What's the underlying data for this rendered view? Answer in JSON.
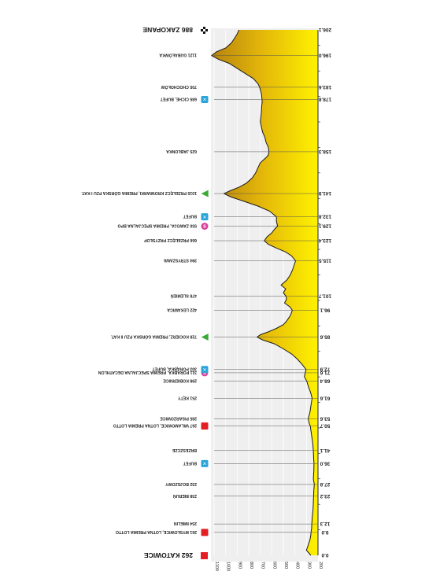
{
  "chart_data": {
    "type": "area",
    "orientation": "rotated-90",
    "distance_unit": "km",
    "altitude_unit": "m",
    "distance_range": [
      0,
      206.1
    ],
    "altitude_range": [
      200,
      1100
    ],
    "altitude_ticks": [
      1100,
      1000,
      900,
      800,
      700,
      600,
      500,
      400,
      300,
      200
    ],
    "start": {
      "altitude": 262,
      "name": "KATOWICE"
    },
    "finish": {
      "altitude": 886,
      "name": "ZAKOPANE"
    },
    "waypoints": [
      {
        "km": "0.0",
        "km_value": 0.0,
        "label": "",
        "altitude": 262,
        "marker": ""
      },
      {
        "km": "9.0",
        "km_value": 9.0,
        "label": "261 MYSŁOWICE, LOTNA PREMIA LOTTO",
        "altitude": 261,
        "marker": "red"
      },
      {
        "km": "12.3",
        "km_value": 12.3,
        "label": "254 IMIELIN",
        "altitude": 254,
        "marker": ""
      },
      {
        "km": "23.2",
        "km_value": 23.2,
        "label": "238 BIERUŃ",
        "altitude": 238,
        "marker": ""
      },
      {
        "km": "27.8",
        "km_value": 27.8,
        "label": "232 BOJSZOWY",
        "altitude": 232,
        "marker": ""
      },
      {
        "km": "36.0",
        "km_value": 36.0,
        "label": "BUFET",
        "altitude": 235,
        "marker": "feed"
      },
      {
        "km": "41.1",
        "km_value": 41.1,
        "label": "BRZESZCZE",
        "altitude": 240,
        "marker": ""
      },
      {
        "km": "50.7",
        "km_value": 50.7,
        "label": "267 WILAMOWICE, LOTNA PREMIA LOTTO",
        "altitude": 267,
        "marker": "red"
      },
      {
        "km": "53.6",
        "km_value": 53.6,
        "label": "285 PISARZOWICE",
        "altitude": 285,
        "marker": ""
      },
      {
        "km": "61.6",
        "km_value": 61.6,
        "label": "251 KĘTY",
        "altitude": 251,
        "marker": ""
      },
      {
        "km": "68.4",
        "km_value": 68.4,
        "label": "298 KOBIERNICE",
        "altitude": 298,
        "marker": ""
      },
      {
        "km": "71.6",
        "km_value": 71.6,
        "label": "311 PORĄBKA, PREMIA SPECJALNA DECATHLON",
        "altitude": 311,
        "marker": "special"
      },
      {
        "km": "72.9",
        "km_value": 72.9,
        "label": "303 PORĄBKA, BUFET",
        "altitude": 303,
        "marker": "feed"
      },
      {
        "km": "85.6",
        "km_value": 85.6,
        "label": "728 KOCIERZ, PREMIA GÓRSKA PZU II KAT.",
        "altitude": 728,
        "marker": "climb"
      },
      {
        "km": "96.1",
        "km_value": 96.1,
        "label": "422 LEKAWICA",
        "altitude": 422,
        "marker": ""
      },
      {
        "km": "101.7",
        "km_value": 101.7,
        "label": "478 SLEMIEŃ",
        "altitude": 478,
        "marker": ""
      },
      {
        "km": "115.5",
        "km_value": 115.5,
        "label": "394 STRYSZAWA",
        "altitude": 394,
        "marker": ""
      },
      {
        "km": "123.4",
        "km_value": 123.4,
        "label": "666 PRZEŁĘCZ PRZYSŁOP",
        "altitude": 666,
        "marker": ""
      },
      {
        "km": "129.1",
        "km_value": 129.1,
        "label": "550 ZAWOJA, PREMIA SPECJALNA BPO",
        "altitude": 550,
        "marker": "special"
      },
      {
        "km": "132.8",
        "km_value": 132.8,
        "label": "BUFET",
        "altitude": 560,
        "marker": "feed"
      },
      {
        "km": "141.9",
        "km_value": 141.9,
        "label": "1015 PRZEŁĘCZ KROWIARKI, PREMIA GÓRSKA PZU I KAT.",
        "altitude": 1015,
        "marker": "climb"
      },
      {
        "km": "158.3",
        "km_value": 158.3,
        "label": "625 JABŁONKA",
        "altitude": 625,
        "marker": ""
      },
      {
        "km": "178.8",
        "km_value": 178.8,
        "label": "685 CICHE, BUFET",
        "altitude": 685,
        "marker": "feed"
      },
      {
        "km": "183.6",
        "km_value": 183.6,
        "label": "705 CHOCHOŁÓW",
        "altitude": 705,
        "marker": ""
      },
      {
        "km": "196.0",
        "km_value": 196.0,
        "label": "1121 GUBAŁÓWKA",
        "altitude": 1121,
        "marker": ""
      },
      {
        "km": "206.1",
        "km_value": 206.1,
        "label": "",
        "altitude": 886,
        "marker": ""
      }
    ],
    "profile": [
      [
        0,
        262
      ],
      [
        2,
        300
      ],
      [
        4,
        285
      ],
      [
        6,
        270
      ],
      [
        8,
        262
      ],
      [
        9,
        261
      ],
      [
        10.5,
        255
      ],
      [
        12.3,
        254
      ],
      [
        15,
        250
      ],
      [
        18,
        243
      ],
      [
        21,
        240
      ],
      [
        23.2,
        238
      ],
      [
        25.5,
        236
      ],
      [
        27.8,
        232
      ],
      [
        30,
        240
      ],
      [
        33,
        236
      ],
      [
        36,
        235
      ],
      [
        38.5,
        238
      ],
      [
        41.1,
        240
      ],
      [
        44,
        246
      ],
      [
        47,
        255
      ],
      [
        50.7,
        267
      ],
      [
        52,
        278
      ],
      [
        53.6,
        285
      ],
      [
        56,
        270
      ],
      [
        58.5,
        262
      ],
      [
        61.6,
        251
      ],
      [
        64,
        265
      ],
      [
        66,
        282
      ],
      [
        68.4,
        298
      ],
      [
        70,
        318
      ],
      [
        71.6,
        311
      ],
      [
        72.9,
        303
      ],
      [
        75,
        340
      ],
      [
        77,
        380
      ],
      [
        79,
        430
      ],
      [
        81,
        500
      ],
      [
        83,
        580
      ],
      [
        84.5,
        680
      ],
      [
        85.6,
        728
      ],
      [
        86.5,
        700
      ],
      [
        87.5,
        640
      ],
      [
        89,
        560
      ],
      [
        90.5,
        500
      ],
      [
        92,
        470
      ],
      [
        94,
        440
      ],
      [
        96.1,
        422
      ],
      [
        97.5,
        445
      ],
      [
        99,
        490
      ],
      [
        100.5,
        472
      ],
      [
        101.7,
        478
      ],
      [
        103,
        500
      ],
      [
        104.5,
        480
      ],
      [
        106,
        520
      ],
      [
        108,
        470
      ],
      [
        110,
        440
      ],
      [
        112,
        420
      ],
      [
        115.5,
        394
      ],
      [
        117.5,
        430
      ],
      [
        119,
        480
      ],
      [
        120.5,
        560
      ],
      [
        122,
        630
      ],
      [
        123.4,
        666
      ],
      [
        125,
        640
      ],
      [
        126.5,
        600
      ],
      [
        128,
        575
      ],
      [
        129.1,
        550
      ],
      [
        131,
        560
      ],
      [
        132.8,
        560
      ],
      [
        135,
        620
      ],
      [
        137,
        720
      ],
      [
        139,
        850
      ],
      [
        140.5,
        950
      ],
      [
        141.9,
        1015
      ],
      [
        143,
        960
      ],
      [
        144.5,
        880
      ],
      [
        146,
        820
      ],
      [
        148,
        770
      ],
      [
        150,
        740
      ],
      [
        152,
        720
      ],
      [
        154,
        700
      ],
      [
        156,
        650
      ],
      [
        157,
        630
      ],
      [
        158.3,
        625
      ],
      [
        160,
        630
      ],
      [
        162,
        650
      ],
      [
        164,
        660
      ],
      [
        166,
        680
      ],
      [
        168,
        690
      ],
      [
        170,
        700
      ],
      [
        172,
        695
      ],
      [
        174,
        690
      ],
      [
        176,
        688
      ],
      [
        177.5,
        684
      ],
      [
        178.8,
        685
      ],
      [
        181,
        690
      ],
      [
        183.6,
        705
      ],
      [
        185,
        720
      ],
      [
        187,
        760
      ],
      [
        189,
        830
      ],
      [
        191,
        900
      ],
      [
        193,
        970
      ],
      [
        194.5,
        1060
      ],
      [
        196,
        1121
      ],
      [
        197.5,
        1080
      ],
      [
        199,
        1000
      ],
      [
        201,
        950
      ],
      [
        203,
        920
      ],
      [
        204.5,
        900
      ],
      [
        206.1,
        886
      ]
    ]
  }
}
